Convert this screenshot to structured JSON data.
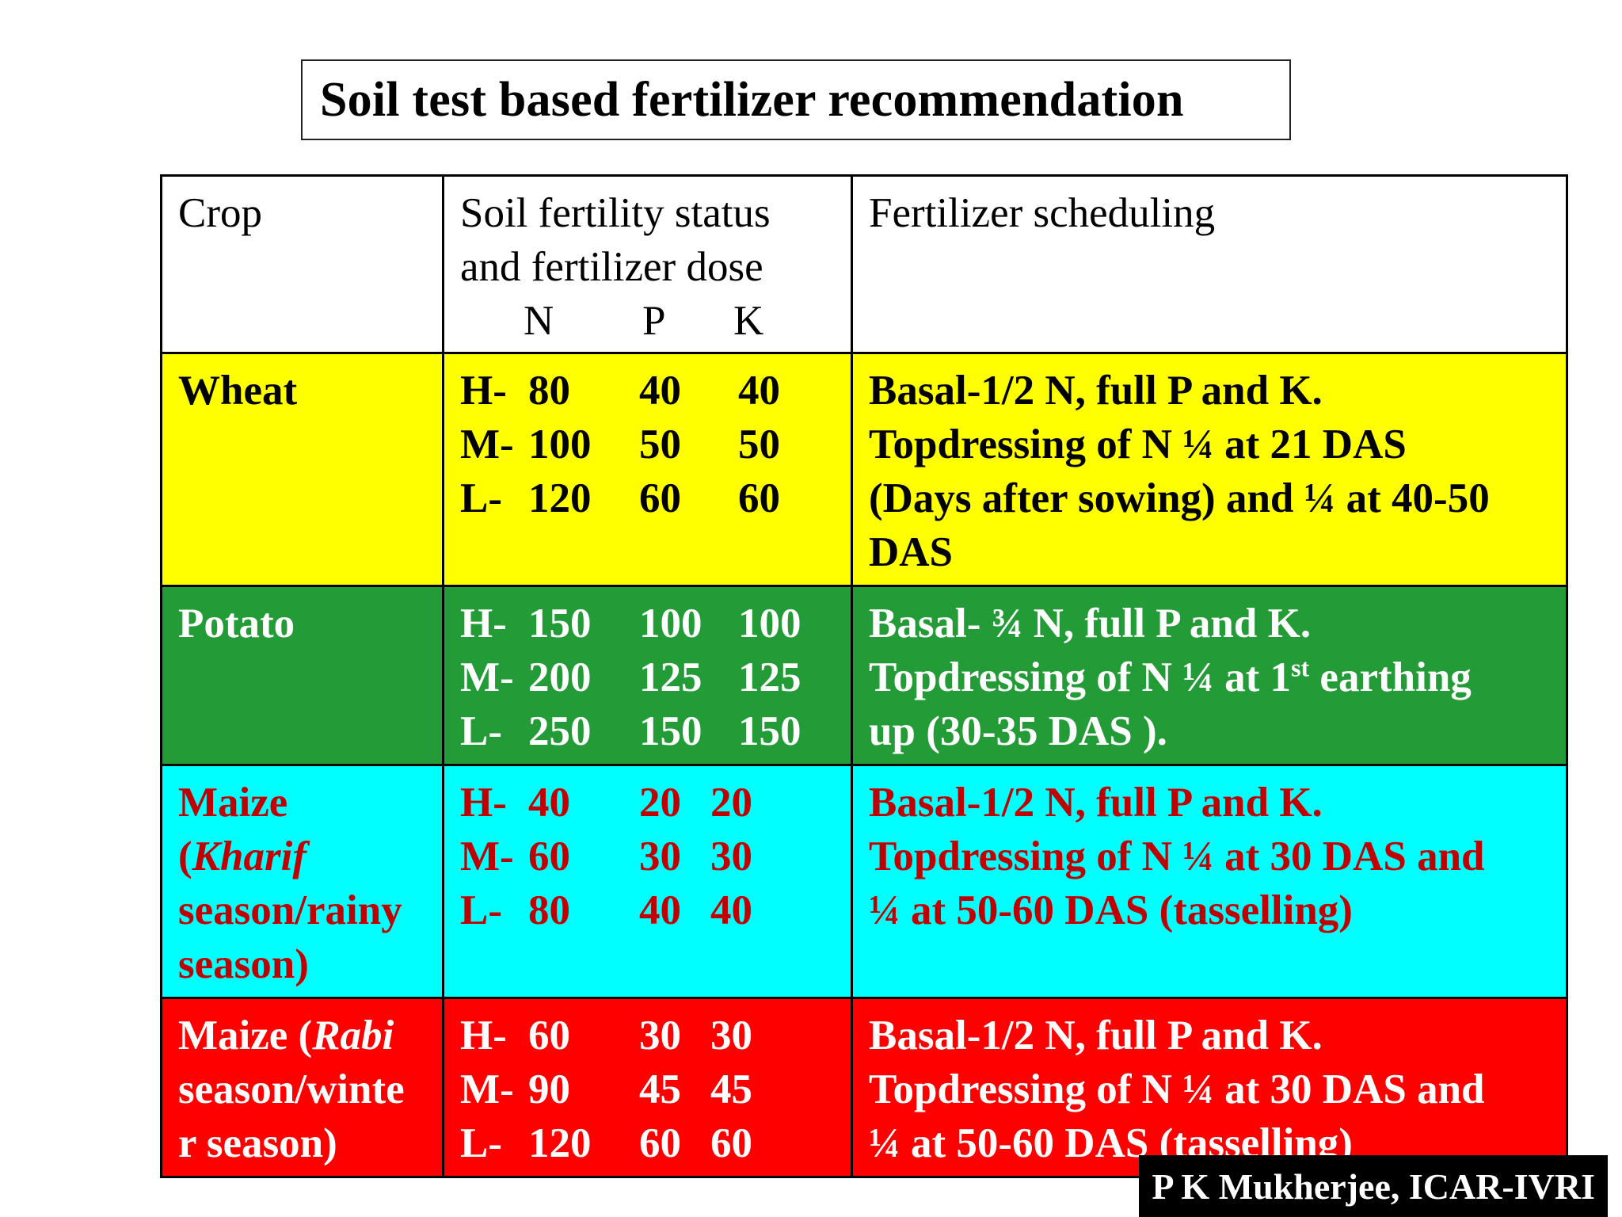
{
  "title": "Soil test based fertilizer recommendation",
  "header": {
    "crop": "Crop",
    "status_line1": "Soil fertility status",
    "status_line2": "and fertilizer dose",
    "n": "N",
    "p": "P",
    "k": "K",
    "schedule": "Fertilizer scheduling"
  },
  "rows": {
    "wheat": {
      "crop": "Wheat",
      "doses": [
        {
          "level": "H-",
          "n": "80",
          "p": "40",
          "k": "40"
        },
        {
          "level": "M-",
          "n": "100",
          "p": "50",
          "k": "50"
        },
        {
          "level": "L-",
          "n": "120",
          "p": "60",
          "k": "60"
        }
      ],
      "schedule": [
        "Basal-1/2 N, full P and K.",
        "Topdressing of N ¼ at 21 DAS",
        "(Days after sowing) and ¼ at 40-50",
        "DAS"
      ]
    },
    "potato": {
      "crop": "Potato",
      "doses": [
        {
          "level": "H-",
          "n": "150",
          "p": "100",
          "k": "100"
        },
        {
          "level": "M-",
          "n": "200",
          "p": "125",
          "k": "125"
        },
        {
          "level": "L-",
          "n": "250",
          "p": "150",
          "k": "150"
        }
      ],
      "schedule": {
        "line1": "Basal- ¾  N, full P and K.",
        "line2_pre": "Topdressing of N ¼ at 1",
        "line2_sup": "st",
        "line2_post": " earthing",
        "line3": "up (30-35 DAS )."
      }
    },
    "maize_kharif": {
      "crop_line1": "Maize",
      "crop_paren_open": "(",
      "crop_italic": "Kharif",
      "crop_line3": "season/rainy",
      "crop_line4": "season)",
      "doses": [
        {
          "level": "H-",
          "n": "40",
          "p": "20",
          "k": "20"
        },
        {
          "level": "M-",
          "n": "60",
          "p": "30",
          "k": "30"
        },
        {
          "level": "L-",
          "n": "80",
          "p": "40",
          "k": "40"
        }
      ],
      "schedule": [
        "Basal-1/2 N, full P and K.",
        "Topdressing of N ¼ at 30 DAS and",
        "¼ at 50-60 DAS (tasselling)"
      ]
    },
    "maize_rabi": {
      "crop_pre": "Maize (",
      "crop_italic": "Rabi",
      "crop_line2": "season/winte",
      "crop_line3": "r season)",
      "doses": [
        {
          "level": "H-",
          "n": "60",
          "p": "30",
          "k": "30"
        },
        {
          "level": "M-",
          "n": "90",
          "p": "45",
          "k": "45"
        },
        {
          "level": "L-",
          "n": "120",
          "p": "60",
          "k": "60"
        }
      ],
      "schedule": [
        "Basal-1/2 N, full P and K.",
        "Topdressing of N ¼ at 30 DAS and",
        "¼ at 50-60 DAS (tasselling)"
      ]
    }
  },
  "credit": "P K Mukherjee, ICAR-IVRI",
  "colors": {
    "wheat_bg": "#ffff00",
    "potato_bg": "#239b37",
    "kharif_bg": "#00ffff",
    "kharif_text": "#c00000",
    "rabi_bg": "#ff0000"
  }
}
